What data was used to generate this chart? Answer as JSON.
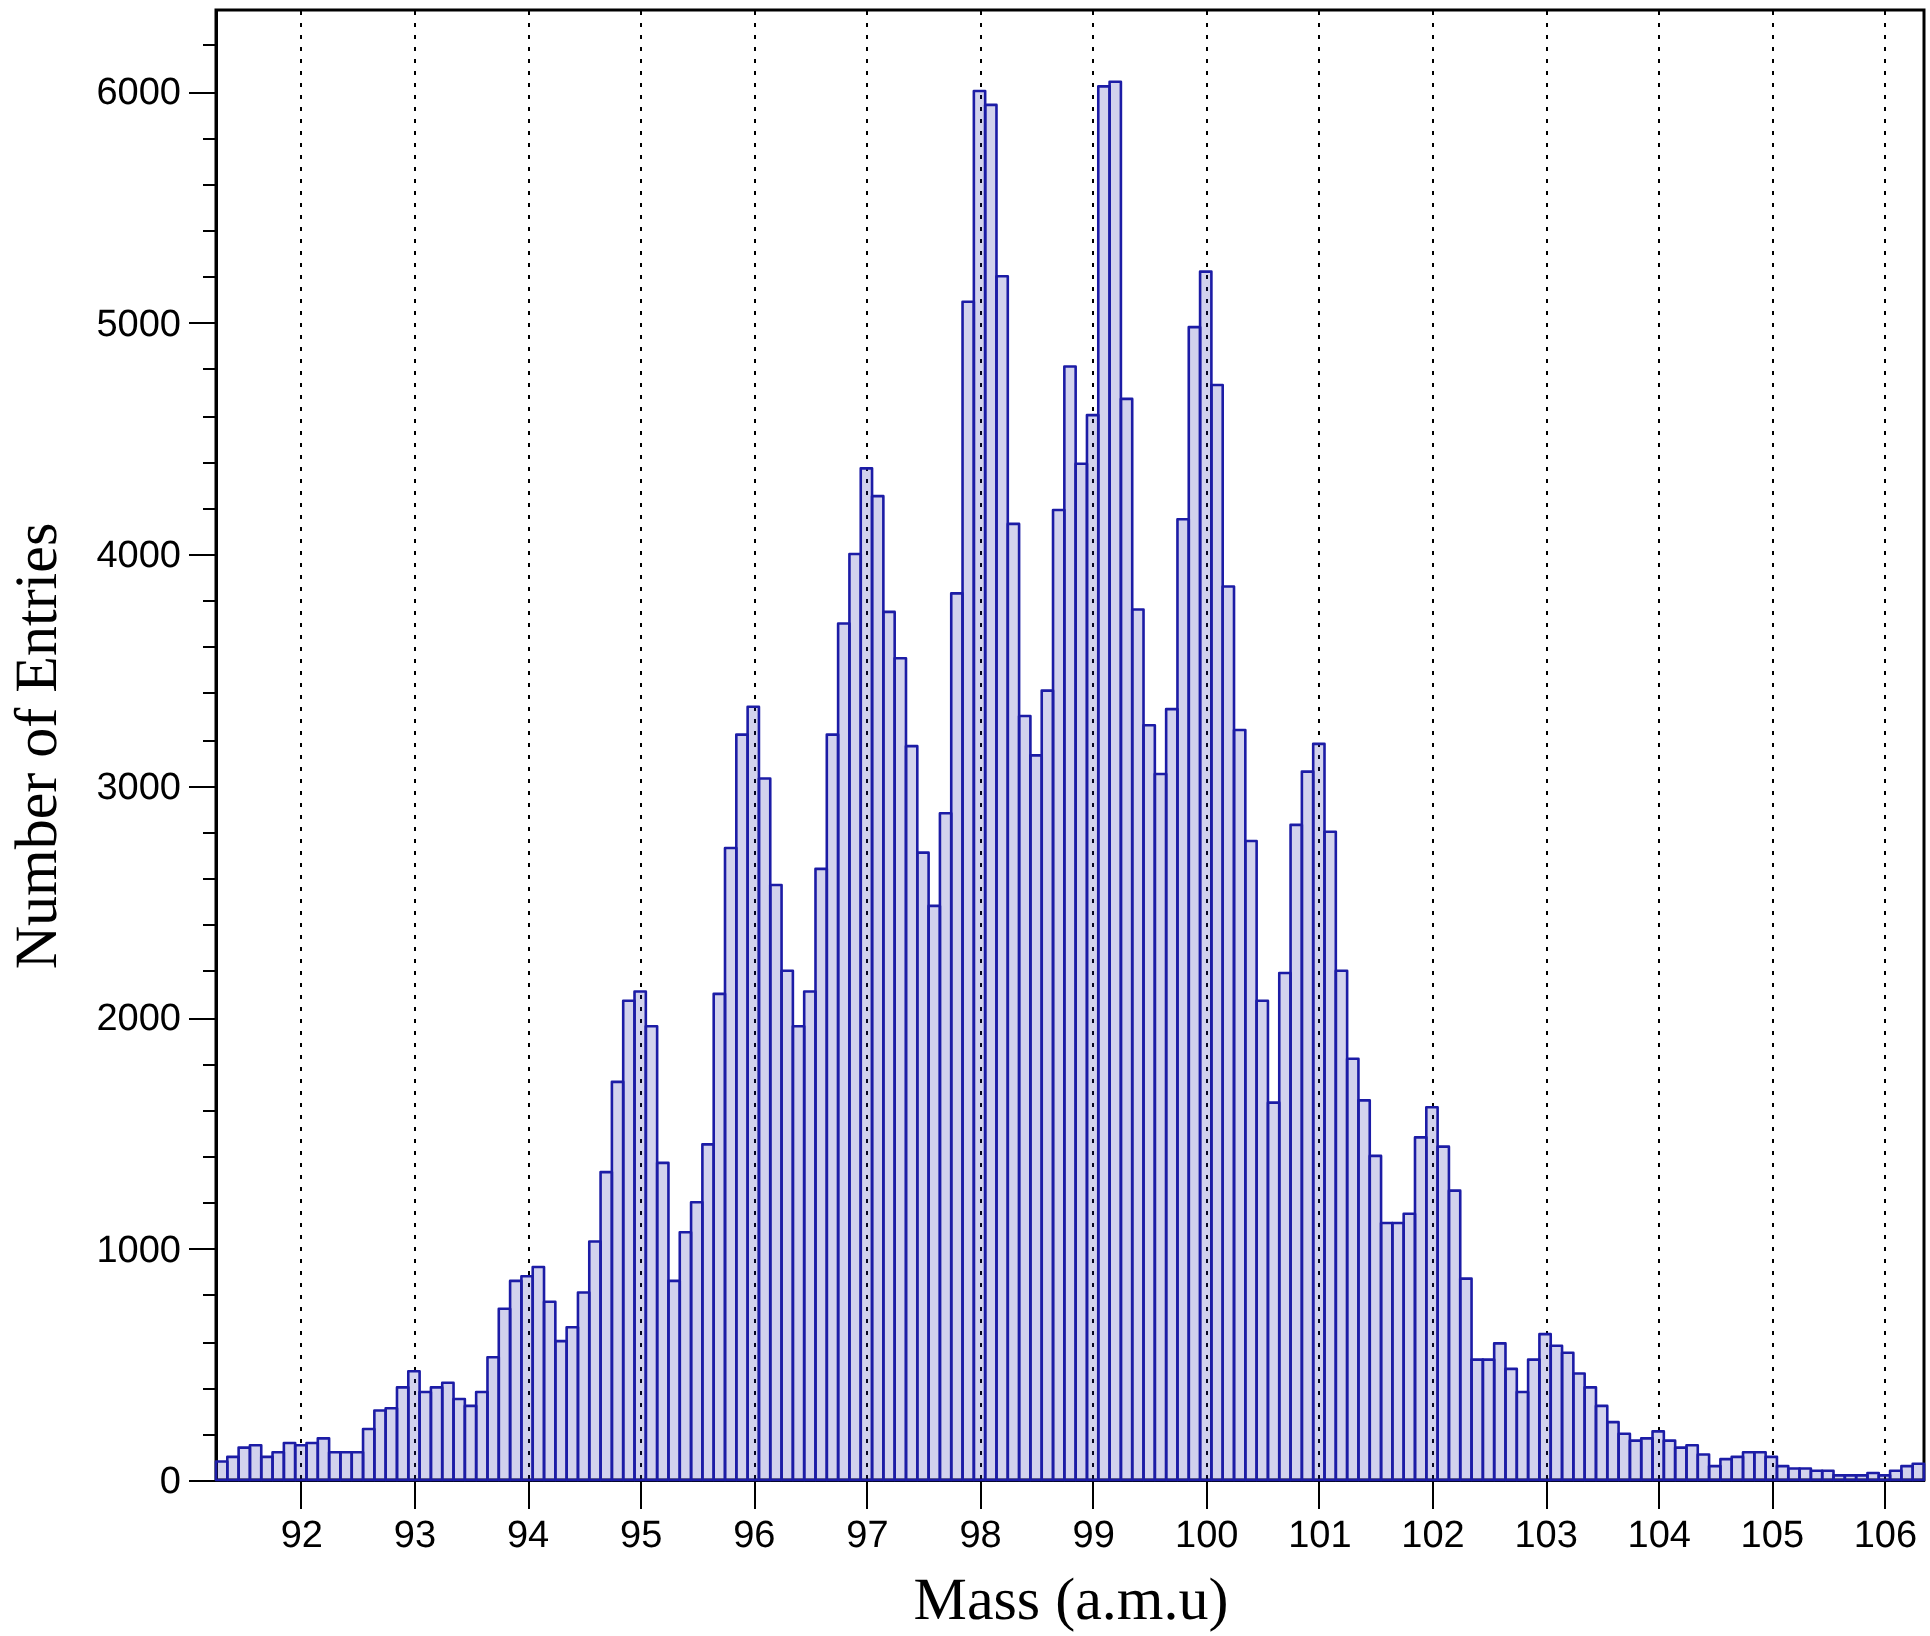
{
  "chart_data": {
    "type": "histogram",
    "xlabel": "Mass (a.m.u)",
    "ylabel": "Number of Entries",
    "bins": [
      91.25,
      91.35,
      91.45,
      91.55,
      91.65,
      91.75,
      91.85,
      91.95,
      92.05,
      92.15,
      92.25,
      92.35,
      92.45,
      92.55,
      92.65,
      92.75,
      92.85,
      92.95,
      93.05,
      93.15,
      93.25,
      93.35,
      93.45,
      93.55,
      93.65,
      93.75,
      93.85,
      93.95,
      94.05,
      94.15,
      94.25,
      94.35,
      94.45,
      94.55,
      94.65,
      94.75,
      94.85,
      94.95,
      95.05,
      95.15,
      95.25,
      95.35,
      95.45,
      95.55,
      95.65,
      95.75,
      95.85,
      95.95,
      96.05,
      96.15,
      96.25,
      96.35,
      96.45,
      96.55,
      96.65,
      96.75,
      96.85,
      96.95,
      97.05,
      97.15,
      97.25,
      97.35,
      97.45,
      97.55,
      97.65,
      97.75,
      97.85,
      97.95,
      98.05,
      98.15,
      98.25,
      98.35,
      98.45,
      98.55,
      98.65,
      98.75,
      98.85,
      98.95,
      99.05,
      99.15,
      99.25,
      99.35,
      99.45,
      99.55,
      99.65,
      99.75,
      99.85,
      99.95,
      100.05,
      100.15,
      100.25,
      100.35,
      100.45,
      100.55,
      100.65,
      100.75,
      100.85,
      100.95,
      101.05,
      101.15,
      101.25,
      101.35,
      101.45,
      101.55,
      101.65,
      101.75,
      101.85,
      101.95,
      102.05,
      102.15,
      102.25,
      102.35,
      102.45,
      102.55,
      102.65,
      102.75,
      102.85,
      102.95,
      103.05,
      103.15,
      103.25,
      103.35,
      103.45,
      103.55,
      103.65,
      103.75,
      103.85,
      103.95,
      104.05,
      104.15,
      104.25,
      104.35,
      104.45,
      104.55,
      104.65,
      104.75,
      104.85,
      104.95,
      105.05,
      105.15,
      105.25,
      105.35,
      105.45,
      105.55,
      105.65,
      105.75,
      105.85,
      105.95,
      106.05,
      106.15,
      106.25,
      106.35
    ],
    "values": [
      80,
      100,
      140,
      150,
      100,
      120,
      160,
      150,
      160,
      180,
      120,
      120,
      120,
      220,
      300,
      310,
      400,
      470,
      380,
      400,
      420,
      350,
      320,
      380,
      530,
      740,
      860,
      880,
      920,
      770,
      600,
      660,
      810,
      1030,
      1330,
      1720,
      2070,
      2110,
      1960,
      1370,
      860,
      1070,
      1200,
      1450,
      2100,
      2730,
      3220,
      3340,
      3030,
      2570,
      2200,
      1960,
      2110,
      2640,
      3220,
      3700,
      4000,
      4370,
      4250,
      3750,
      3550,
      3170,
      2710,
      2480,
      2880,
      3830,
      5090,
      6000,
      5940,
      5200,
      4130,
      3300,
      3130,
      3410,
      4190,
      4810,
      4390,
      4600,
      6020,
      6040,
      4670,
      3760,
      3260,
      3050,
      3330,
      4150,
      4980,
      5220,
      4730,
      3860,
      3240,
      2760,
      2070,
      1630,
      2190,
      2830,
      3060,
      3180,
      2800,
      2200,
      1820,
      1640,
      1400,
      1110,
      1110,
      1150,
      1480,
      1610,
      1440,
      1250,
      870,
      520,
      520,
      590,
      480,
      380,
      520,
      630,
      580,
      550,
      460,
      400,
      320,
      250,
      200,
      170,
      180,
      210,
      170,
      140,
      150,
      110,
      60,
      90,
      100,
      120,
      120,
      100,
      60,
      50,
      50,
      40,
      40,
      20,
      20,
      20,
      30,
      20,
      40,
      60,
      70
    ],
    "color": "#1c1ca6",
    "xlim": [
      91.25,
      106.35
    ],
    "xticks": [
      92,
      93,
      94,
      95,
      96,
      97,
      98,
      99,
      100,
      101,
      102,
      103,
      104,
      105,
      106
    ],
    "ylim": [
      0,
      6350
    ],
    "yticks": [
      0,
      {
        "value": 200,
        "label": null
      },
      {
        "value": 400,
        "label": null
      },
      {
        "value": 600,
        "label": null
      },
      {
        "value": 800,
        "label": null
      },
      1000,
      {
        "value": 1200,
        "label": null
      },
      {
        "value": 1400,
        "label": null
      },
      {
        "value": 1600,
        "label": null
      },
      {
        "value": 1800,
        "label": null
      },
      2000,
      {
        "value": 2200,
        "label": null
      },
      {
        "value": 2400,
        "label": null
      },
      {
        "value": 2600,
        "label": null
      },
      {
        "value": 2800,
        "label": null
      },
      3000,
      {
        "value": 3200,
        "label": null
      },
      {
        "value": 3400,
        "label": null
      },
      {
        "value": 3600,
        "label": null
      },
      {
        "value": 3800,
        "label": null
      },
      4000,
      {
        "value": 4200,
        "label": null
      },
      {
        "value": 4400,
        "label": null
      },
      {
        "value": 4600,
        "label": null
      },
      {
        "value": 4800,
        "label": null
      },
      5000,
      {
        "value": 5200,
        "label": null
      },
      {
        "value": 5400,
        "label": null
      },
      {
        "value": 5600,
        "label": null
      },
      {
        "value": 5800,
        "label": null
      },
      6000,
      {
        "value": 6200,
        "label": null
      }
    ],
    "grid": "x"
  }
}
